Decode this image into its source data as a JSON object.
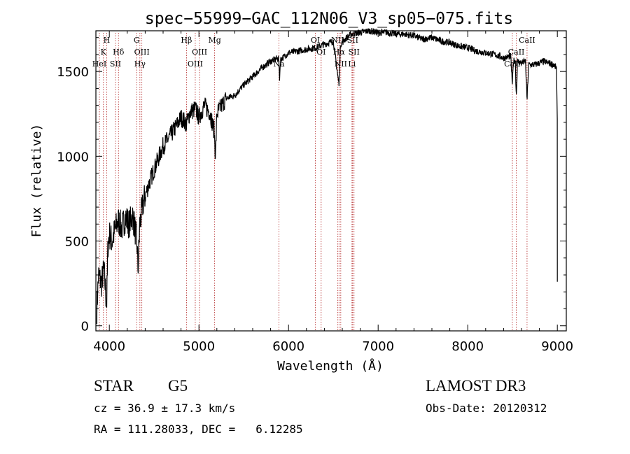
{
  "chart_data": {
    "type": "line",
    "title": "spec−55999−GAC_112N06_V3_sp05−075.fits",
    "xlabel": "Wavelength (Å)",
    "ylabel": "Flux (relative)",
    "xlim": [
      3850,
      9100
    ],
    "ylim": [
      -30,
      1740
    ],
    "xticks": [
      4000,
      5000,
      6000,
      7000,
      8000,
      9000
    ],
    "yticks": [
      0,
      500,
      1000,
      1500
    ],
    "grid": false,
    "line_color": "#000000",
    "marker_color": "#b22222",
    "spectrum_knots": [
      [
        3860,
        100
      ],
      [
        3880,
        300
      ],
      [
        3910,
        250
      ],
      [
        3940,
        330
      ],
      [
        3970,
        120
      ],
      [
        3985,
        480
      ],
      [
        4000,
        540
      ],
      [
        4030,
        500
      ],
      [
        4060,
        560
      ],
      [
        4100,
        620
      ],
      [
        4140,
        580
      ],
      [
        4180,
        640
      ],
      [
        4220,
        600
      ],
      [
        4260,
        650
      ],
      [
        4290,
        560
      ],
      [
        4310,
        470
      ],
      [
        4320,
        330
      ],
      [
        4340,
        600
      ],
      [
        4380,
        730
      ],
      [
        4450,
        850
      ],
      [
        4520,
        950
      ],
      [
        4600,
        1060
      ],
      [
        4680,
        1120
      ],
      [
        4750,
        1180
      ],
      [
        4800,
        1230
      ],
      [
        4861,
        1190
      ],
      [
        4900,
        1260
      ],
      [
        4960,
        1280
      ],
      [
        5000,
        1230
      ],
      [
        5060,
        1300
      ],
      [
        5120,
        1260
      ],
      [
        5170,
        1150
      ],
      [
        5185,
        1000
      ],
      [
        5200,
        1250
      ],
      [
        5300,
        1340
      ],
      [
        5400,
        1360
      ],
      [
        5500,
        1420
      ],
      [
        5600,
        1470
      ],
      [
        5700,
        1520
      ],
      [
        5800,
        1560
      ],
      [
        5890,
        1580
      ],
      [
        5900,
        1460
      ],
      [
        5910,
        1570
      ],
      [
        6000,
        1610
      ],
      [
        6100,
        1620
      ],
      [
        6200,
        1630
      ],
      [
        6300,
        1640
      ],
      [
        6400,
        1660
      ],
      [
        6500,
        1680
      ],
      [
        6563,
        1420
      ],
      [
        6580,
        1660
      ],
      [
        6650,
        1700
      ],
      [
        6700,
        1720
      ],
      [
        6800,
        1730
      ],
      [
        6900,
        1740
      ],
      [
        7000,
        1730
      ],
      [
        7100,
        1730
      ],
      [
        7200,
        1720
      ],
      [
        7300,
        1720
      ],
      [
        7400,
        1710
      ],
      [
        7500,
        1690
      ],
      [
        7600,
        1700
      ],
      [
        7700,
        1680
      ],
      [
        7800,
        1670
      ],
      [
        7900,
        1650
      ],
      [
        8000,
        1640
      ],
      [
        8100,
        1620
      ],
      [
        8200,
        1610
      ],
      [
        8300,
        1600
      ],
      [
        8400,
        1580
      ],
      [
        8480,
        1590
      ],
      [
        8498,
        1420
      ],
      [
        8510,
        1560
      ],
      [
        8530,
        1570
      ],
      [
        8542,
        1350
      ],
      [
        8555,
        1560
      ],
      [
        8600,
        1550
      ],
      [
        8645,
        1560
      ],
      [
        8662,
        1330
      ],
      [
        8680,
        1540
      ],
      [
        8750,
        1540
      ],
      [
        8850,
        1560
      ],
      [
        8900,
        1550
      ],
      [
        8960,
        1540
      ],
      [
        8990,
        1520
      ],
      [
        9000,
        1170
      ]
    ],
    "lines": [
      {
        "name": "H",
        "x": 3970,
        "row": 0
      },
      {
        "name": "K",
        "x": 3934,
        "row": 1
      },
      {
        "name": "HeI",
        "x": 3889,
        "row": 2
      },
      {
        "name": "SII",
        "x": 4069,
        "row": 2
      },
      {
        "name": "Hδ",
        "x": 4102,
        "row": 1
      },
      {
        "name": "G",
        "x": 4305,
        "row": 0
      },
      {
        "name": "OIII",
        "x": 4363,
        "row": 1
      },
      {
        "name": "Hγ",
        "x": 4341,
        "row": 2
      },
      {
        "name": "Hβ",
        "x": 4861,
        "row": 0
      },
      {
        "name": "OIII",
        "x": 5007,
        "row": 1
      },
      {
        "name": "OIII",
        "x": 4959,
        "row": 2
      },
      {
        "name": "Mg",
        "x": 5175,
        "row": 0
      },
      {
        "name": "Na",
        "x": 5893,
        "row": 2
      },
      {
        "name": "OI",
        "x": 6300,
        "row": 0
      },
      {
        "name": "OI",
        "x": 6364,
        "row": 1
      },
      {
        "name": "NII",
        "x": 6548,
        "row": 0
      },
      {
        "name": "Hα",
        "x": 6563,
        "row": 1
      },
      {
        "name": "NII",
        "x": 6583,
        "row": 2
      },
      {
        "name": "SII",
        "x": 6716,
        "row": 0
      },
      {
        "name": "SII",
        "x": 6731,
        "row": 1
      },
      {
        "name": "Li",
        "x": 6708,
        "row": 2
      },
      {
        "name": "CaII",
        "x": 8662,
        "row": 0
      },
      {
        "name": "CaII",
        "x": 8542,
        "row": 1
      },
      {
        "name": "CaII",
        "x": 8498,
        "row": 2
      }
    ]
  },
  "info": {
    "object_class": "STAR",
    "subclass": "G5",
    "survey": "LAMOST DR3",
    "redshift": "cz = 36.9 ± 17.3 km/s",
    "obs_date": "Obs-Date: 20120312",
    "coords": "RA = 111.28033, DEC =   6.12285"
  }
}
